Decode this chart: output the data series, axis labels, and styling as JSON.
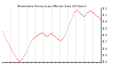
{
  "title": "Barometric Pressure per Minute (Last 24 Hours)",
  "bg_color": "#ffffff",
  "plot_bg": "#ffffff",
  "line_color": "#ff0000",
  "grid_color": "#888888",
  "text_color": "#000000",
  "y_min": 29.4,
  "y_max": 30.2,
  "y_ticks": [
    29.4,
    29.5,
    29.6,
    29.7,
    29.8,
    29.9,
    30.0,
    30.1,
    30.2
  ],
  "y_tick_labels": [
    "29.4",
    "29.5",
    "29.6",
    "29.7",
    "29.8",
    "29.9",
    "30.0",
    "30.1",
    "30.2"
  ],
  "pressure_profile": [
    29.85,
    29.82,
    29.8,
    29.77,
    29.74,
    29.72,
    29.7,
    29.68,
    29.65,
    29.63,
    29.6,
    29.58,
    29.56,
    29.54,
    29.52,
    29.5,
    29.48,
    29.46,
    29.44,
    29.43,
    29.42,
    29.41,
    29.42,
    29.43,
    29.44,
    29.46,
    29.48,
    29.5,
    29.52,
    29.54,
    29.56,
    29.59,
    29.62,
    29.65,
    29.68,
    29.7,
    29.72,
    29.74,
    29.75,
    29.76,
    29.77,
    29.78,
    29.79,
    29.8,
    29.81,
    29.82,
    29.82,
    29.83,
    29.83,
    29.84,
    29.83,
    29.82,
    29.81,
    29.8,
    29.79,
    29.78,
    29.79,
    29.8,
    29.81,
    29.82,
    29.83,
    29.83,
    29.82,
    29.81,
    29.8,
    29.79,
    29.78,
    29.77,
    29.76,
    29.75,
    29.74,
    29.73,
    29.72,
    29.72,
    29.73,
    29.74,
    29.76,
    29.78,
    29.8,
    29.83,
    29.86,
    29.89,
    29.92,
    29.95,
    29.98,
    30.01,
    30.04,
    30.07,
    30.1,
    30.12,
    30.14,
    30.16,
    30.17,
    30.18,
    30.18,
    30.16,
    30.15,
    30.13,
    30.12,
    30.11,
    30.1,
    30.09,
    30.09,
    30.1,
    30.11,
    30.13,
    30.14,
    30.15,
    30.16,
    30.17,
    30.17,
    30.16,
    30.15,
    30.14,
    30.13,
    30.12,
    30.11,
    30.1,
    30.09,
    30.08,
    30.07,
    30.06,
    30.05,
    30.04
  ]
}
